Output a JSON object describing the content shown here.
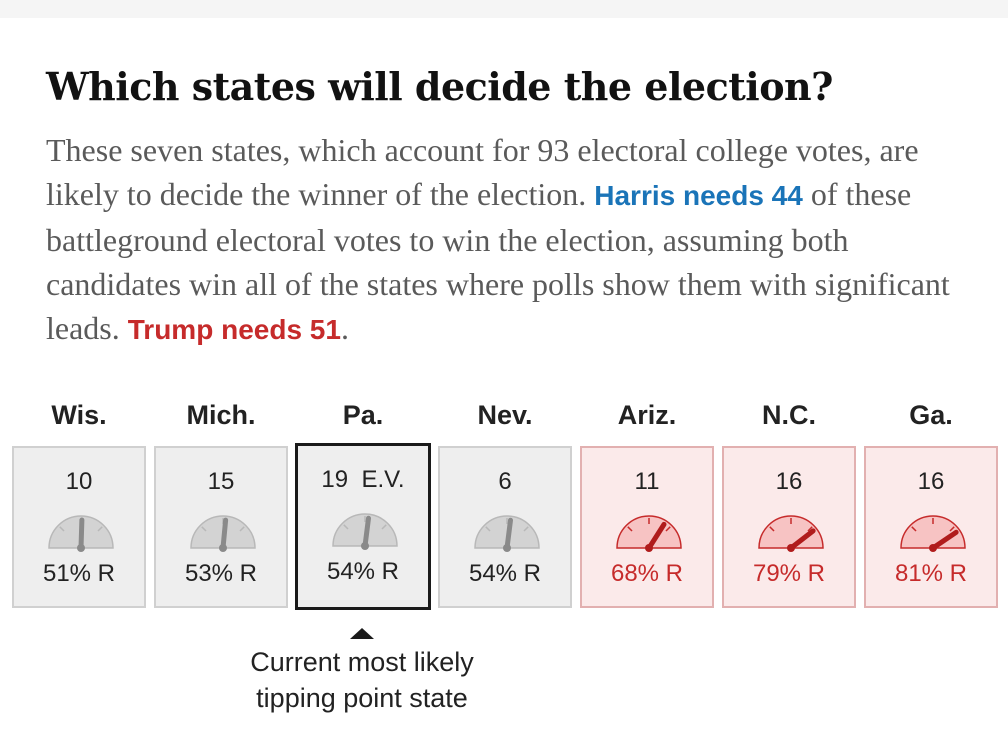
{
  "header": {
    "title": "Which states will decide the election?",
    "intro_part1": "These seven states, which account for 93 electoral college votes, are likely to decide the winner of the election.",
    "harris_highlight": "Harris needs 44",
    "intro_part2": "of these battleground electoral votes to win the election, assuming both candidates win all of the states where polls show them with significant leads.",
    "trump_highlight": "Trump needs 51",
    "intro_end": "."
  },
  "colors": {
    "harris": "#1a74b8",
    "trump": "#c62b2b",
    "tossup_card": "#eeeeee",
    "lean_r_card": "#fbeaea"
  },
  "states": [
    {
      "name": "Wis.",
      "ev": "10",
      "pct": "51% R",
      "lean": "tossup",
      "probability_r": 0.51
    },
    {
      "name": "Mich.",
      "ev": "15",
      "pct": "53% R",
      "lean": "tossup",
      "probability_r": 0.53
    },
    {
      "name": "Pa.",
      "ev": "19  E.V.",
      "pct": "54% R",
      "lean": "tossup",
      "probability_r": 0.54,
      "tipping_point": true
    },
    {
      "name": "Nev.",
      "ev": "6",
      "pct": "54% R",
      "lean": "tossup",
      "probability_r": 0.54
    },
    {
      "name": "Ariz.",
      "ev": "11",
      "pct": "68% R",
      "lean": "lean-r",
      "probability_r": 0.68
    },
    {
      "name": "N.C.",
      "ev": "16",
      "pct": "79% R",
      "lean": "lean-r",
      "probability_r": 0.79
    },
    {
      "name": "Ga.",
      "ev": "16",
      "pct": "81% R",
      "lean": "lean-r",
      "probability_r": 0.81
    }
  ],
  "gauge_icon": "gauge-icon",
  "caption": {
    "line1": "Current most likely",
    "line2": "tipping point state"
  }
}
